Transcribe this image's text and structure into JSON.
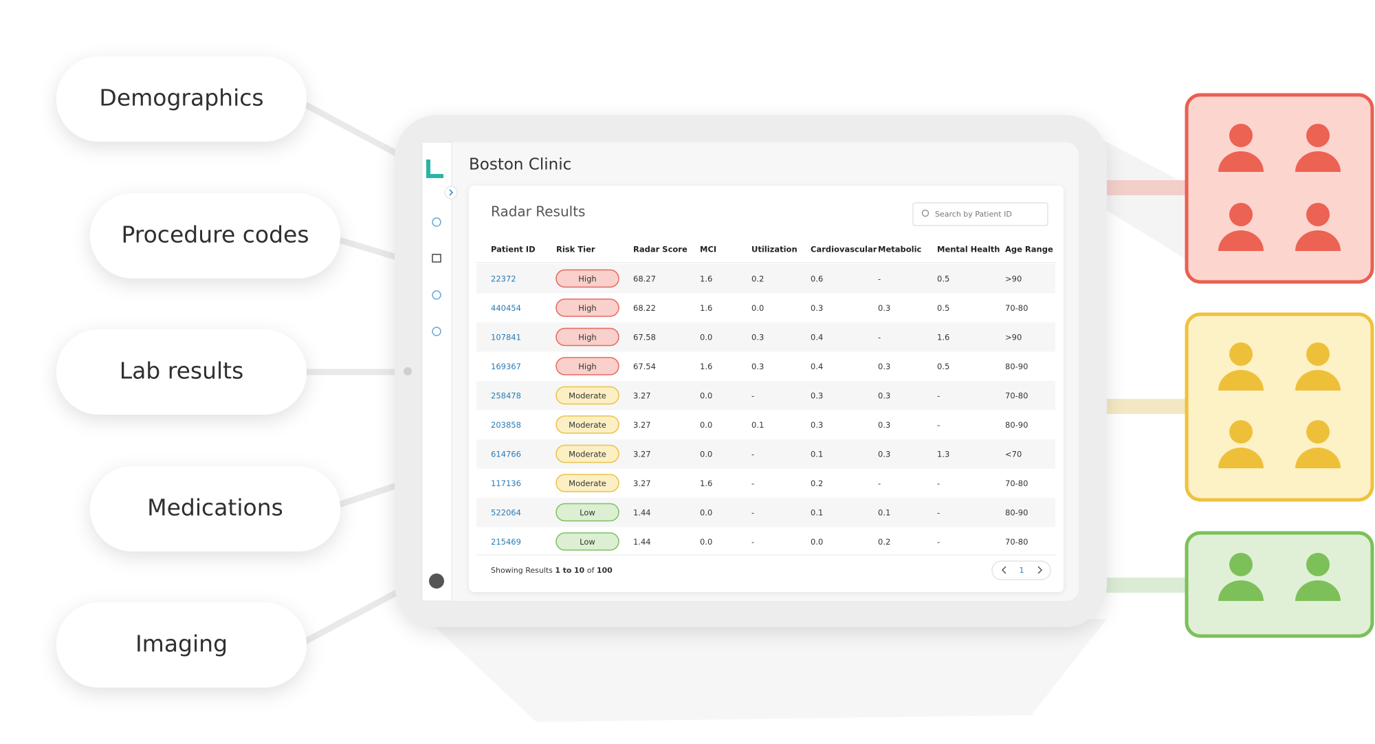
{
  "inputs": [
    "Demographics",
    "Procedure codes",
    "Lab results",
    "Medications",
    "Imaging"
  ],
  "app": {
    "clinic": "Boston Clinic",
    "card_title": "Radar Results",
    "search_placeholder": "Search by Patient ID",
    "columns": [
      "Patient ID",
      "Risk Tier",
      "Radar Score",
      "MCI",
      "Utilization",
      "Cardiovascular",
      "Metabolic",
      "Mental Health",
      "Age Range"
    ],
    "rows": [
      [
        "22372",
        "High",
        "68.27",
        "1.6",
        "0.2",
        "0.6",
        "-",
        "0.5",
        ">90"
      ],
      [
        "440454",
        "High",
        "68.22",
        "1.6",
        "0.0",
        "0.3",
        "0.3",
        "0.5",
        "70-80"
      ],
      [
        "107841",
        "High",
        "67.58",
        "0.0",
        "0.3",
        "0.4",
        "-",
        "1.6",
        ">90"
      ],
      [
        "169367",
        "High",
        "67.54",
        "1.6",
        "0.3",
        "0.4",
        "0.3",
        "0.5",
        "80-90"
      ],
      [
        "258478",
        "Moderate",
        "3.27",
        "0.0",
        "-",
        "0.3",
        "0.3",
        "-",
        "70-80"
      ],
      [
        "203858",
        "Moderate",
        "3.27",
        "0.0",
        "0.1",
        "0.3",
        "0.3",
        "-",
        "80-90"
      ],
      [
        "614766",
        "Moderate",
        "3.27",
        "0.0",
        "-",
        "0.1",
        "0.3",
        "1.3",
        "<70"
      ],
      [
        "117136",
        "Moderate",
        "3.27",
        "1.6",
        "-",
        "0.2",
        "-",
        "-",
        "70-80"
      ],
      [
        "522064",
        "Low",
        "1.44",
        "0.0",
        "-",
        "0.1",
        "0.1",
        "-",
        "80-90"
      ],
      [
        "215469",
        "Low",
        "1.44",
        "0.0",
        "-",
        "0.0",
        "0.2",
        "-",
        "70-80"
      ]
    ],
    "tier_colors": {
      "High": {
        "fill": "#f9d0cb",
        "stroke": "#e7685d"
      },
      "Moderate": {
        "fill": "#fcefc4",
        "stroke": "#eac24a"
      },
      "Low": {
        "fill": "#dcefd3",
        "stroke": "#7fbf63"
      }
    },
    "footer": {
      "prefix": "Showing Results",
      "from": "1",
      "to_word": "to",
      "to": "10",
      "of_word": "of",
      "total": "100"
    },
    "page": "1"
  }
}
